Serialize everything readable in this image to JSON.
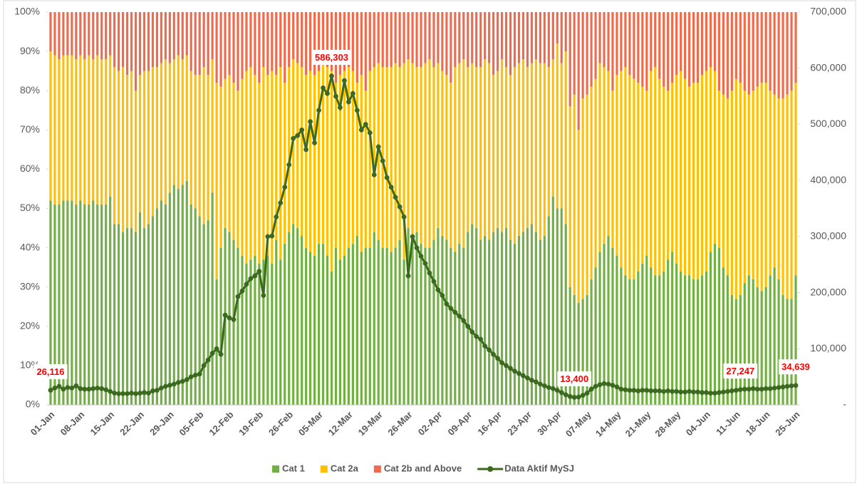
{
  "chart_data": {
    "type": "bar",
    "stacked": true,
    "categories": [
      "01-Jan",
      null,
      null,
      null,
      null,
      null,
      null,
      "08-Jan",
      null,
      null,
      null,
      null,
      null,
      null,
      "15-Jan",
      null,
      null,
      null,
      null,
      null,
      null,
      "22-Jan",
      null,
      null,
      null,
      null,
      null,
      null,
      "29-Jan",
      null,
      null,
      null,
      null,
      null,
      null,
      "05-Feb",
      null,
      null,
      null,
      null,
      null,
      null,
      "12-Feb",
      null,
      null,
      null,
      null,
      null,
      null,
      "19-Feb",
      null,
      null,
      null,
      null,
      null,
      null,
      "26-Feb",
      null,
      null,
      null,
      null,
      null,
      null,
      "05-Mar",
      null,
      null,
      null,
      null,
      null,
      null,
      "12-Mar",
      null,
      null,
      null,
      null,
      null,
      null,
      "19-Mar",
      null,
      null,
      null,
      null,
      null,
      null,
      "26-Mar",
      null,
      null,
      null,
      null,
      null,
      null,
      "02-Apr",
      null,
      null,
      null,
      null,
      null,
      null,
      "09-Apr",
      null,
      null,
      null,
      null,
      null,
      null,
      "16-Apr",
      null,
      null,
      null,
      null,
      null,
      null,
      "23-Apr",
      null,
      null,
      null,
      null,
      null,
      null,
      "30-Apr",
      null,
      null,
      null,
      null,
      null,
      null,
      "07-May",
      null,
      null,
      null,
      null,
      null,
      null,
      "14-May",
      null,
      null,
      null,
      null,
      null,
      null,
      "21-May",
      null,
      null,
      null,
      null,
      null,
      null,
      "28-May",
      null,
      null,
      null,
      null,
      null,
      null,
      "04-Jun",
      null,
      null,
      null,
      null,
      null,
      null,
      "11-Jun",
      null,
      null,
      null,
      null,
      null,
      null,
      "18-Jun",
      null,
      null,
      null,
      null,
      null,
      null,
      "25-Jun"
    ],
    "series": [
      {
        "name": "Cat 1",
        "color": "#72b043",
        "values": [
          52,
          51,
          51,
          52,
          52,
          52,
          51,
          52,
          51,
          51,
          52,
          51,
          51,
          51,
          53,
          46,
          46,
          44,
          45,
          45,
          44,
          49,
          45,
          46,
          48,
          50,
          52,
          51,
          54,
          56,
          55,
          56,
          57,
          51,
          50,
          48,
          46,
          47,
          54,
          32,
          40,
          45,
          44,
          42,
          40,
          38,
          36,
          37,
          38,
          36,
          37,
          38,
          36,
          42,
          37,
          41,
          44,
          46,
          45,
          43,
          40,
          39,
          38,
          41,
          41,
          38,
          34,
          40,
          37,
          38,
          40,
          41,
          43,
          39,
          40,
          40,
          44,
          42,
          40,
          40,
          39,
          40,
          42,
          37,
          45,
          43,
          44,
          41,
          40,
          40,
          42,
          45,
          43,
          42,
          40,
          39,
          41,
          40,
          44,
          46,
          45,
          42,
          43,
          42,
          44,
          45,
          44,
          45,
          42,
          41,
          43,
          44,
          45,
          46,
          44,
          42,
          43,
          48,
          53,
          50,
          50,
          46,
          30,
          28,
          26,
          27,
          28,
          32,
          35,
          39,
          41,
          43,
          40,
          38,
          35,
          33,
          32,
          32,
          34,
          36,
          38,
          35,
          33,
          33,
          34,
          37,
          39,
          36,
          34,
          33,
          33,
          32,
          32,
          33,
          34,
          39,
          41,
          40,
          35,
          33,
          28,
          27,
          28,
          31,
          33,
          32,
          30,
          29,
          30,
          33,
          35,
          32,
          28,
          27,
          27,
          33
        ]
      },
      {
        "name": "Cat 2a",
        "color": "#ffc000",
        "values": [
          38,
          38,
          37,
          37,
          37,
          37,
          37,
          37,
          37,
          38,
          36,
          38,
          37,
          37,
          36,
          40,
          39,
          42,
          39,
          40,
          36,
          35,
          40,
          39,
          38,
          36,
          35,
          37,
          33,
          32,
          34,
          32,
          32,
          34,
          34,
          36,
          40,
          37,
          34,
          50,
          41,
          38,
          40,
          40,
          40,
          45,
          49,
          49,
          46,
          46,
          49,
          46,
          49,
          42,
          49,
          41,
          42,
          42,
          42,
          43,
          44,
          46,
          46,
          44,
          47,
          48,
          51,
          42,
          47,
          47,
          46,
          44,
          39,
          45,
          40,
          45,
          42,
          45,
          46,
          46,
          47,
          47,
          44,
          50,
          43,
          44,
          42,
          45,
          47,
          48,
          44,
          42,
          42,
          42,
          42,
          47,
          46,
          48,
          42,
          41,
          41,
          44,
          45,
          45,
          40,
          40,
          44,
          41,
          42,
          45,
          44,
          44,
          41,
          41,
          44,
          45,
          44,
          38,
          35,
          42,
          37,
          44,
          46,
          51,
          44,
          51,
          51,
          49,
          48,
          48,
          45,
          42,
          40,
          46,
          50,
          53,
          52,
          51,
          48,
          45,
          42,
          50,
          53,
          50,
          47,
          43,
          43,
          48,
          51,
          50,
          48,
          50,
          50,
          51,
          51,
          47,
          44,
          40,
          44,
          45,
          52,
          56,
          54,
          49,
          46,
          48,
          51,
          53,
          52,
          47,
          44,
          46,
          50,
          52,
          53,
          49
        ]
      },
      {
        "name": "Cat 2b and Above",
        "color": "#ee6c4d",
        "values": [
          10,
          11,
          12,
          11,
          11,
          11,
          12,
          11,
          12,
          11,
          12,
          11,
          12,
          12,
          11,
          14,
          15,
          14,
          16,
          15,
          20,
          16,
          15,
          15,
          14,
          14,
          13,
          12,
          13,
          12,
          11,
          12,
          11,
          15,
          16,
          16,
          14,
          16,
          12,
          18,
          19,
          17,
          16,
          18,
          20,
          17,
          15,
          14,
          16,
          18,
          14,
          16,
          15,
          16,
          14,
          18,
          14,
          12,
          13,
          14,
          16,
          15,
          16,
          15,
          12,
          14,
          15,
          18,
          16,
          15,
          14,
          15,
          18,
          16,
          20,
          15,
          14,
          13,
          14,
          14,
          14,
          13,
          14,
          13,
          12,
          13,
          14,
          14,
          13,
          12,
          14,
          13,
          15,
          16,
          18,
          14,
          13,
          12,
          14,
          13,
          14,
          14,
          12,
          13,
          16,
          15,
          12,
          14,
          16,
          14,
          13,
          12,
          14,
          13,
          12,
          13,
          13,
          14,
          12,
          8,
          13,
          10,
          24,
          21,
          30,
          22,
          21,
          19,
          17,
          13,
          14,
          15,
          20,
          16,
          15,
          14,
          16,
          17,
          18,
          19,
          20,
          15,
          14,
          17,
          19,
          20,
          18,
          16,
          15,
          17,
          19,
          18,
          18,
          16,
          15,
          14,
          15,
          20,
          21,
          22,
          20,
          17,
          18,
          20,
          21,
          20,
          19,
          18,
          18,
          20,
          21,
          22,
          22,
          21,
          20,
          18
        ]
      },
      {
        "name": "Data Aktif MySJ",
        "color": "#3b6a1e",
        "type": "line",
        "axis": "y2",
        "values": [
          26116,
          30000,
          33000,
          28000,
          31000,
          30000,
          34000,
          29000,
          28000,
          28000,
          29000,
          30000,
          29000,
          27000,
          24000,
          21000,
          20000,
          20000,
          20000,
          21000,
          20000,
          21000,
          22000,
          21000,
          25000,
          26000,
          30000,
          33000,
          35000,
          37000,
          40000,
          42000,
          45000,
          50000,
          53000,
          55000,
          70000,
          80000,
          92000,
          100000,
          90000,
          160000,
          155000,
          152000,
          193000,
          203000,
          215000,
          225000,
          230000,
          238000,
          195000,
          300000,
          301000,
          335000,
          360000,
          388000,
          428000,
          475000,
          480000,
          490000,
          455000,
          505000,
          467000,
          525000,
          565000,
          555000,
          586303,
          550000,
          530000,
          578000,
          540000,
          555000,
          525000,
          490000,
          500000,
          485000,
          410000,
          460000,
          435000,
          405000,
          388000,
          370000,
          353000,
          335000,
          230000,
          300000,
          280000,
          265000,
          252000,
          235000,
          220000,
          205000,
          195000,
          180000,
          172000,
          165000,
          158000,
          150000,
          140000,
          130000,
          122000,
          117000,
          105000,
          98000,
          90000,
          83000,
          75000,
          70000,
          65000,
          60000,
          56000,
          52000,
          48000,
          44000,
          41000,
          37000,
          34000,
          31000,
          29000,
          26000,
          22000,
          18000,
          15000,
          13400,
          14000,
          17000,
          21000,
          28000,
          33000,
          36000,
          38000,
          37000,
          35000,
          32000,
          28000,
          27000,
          26000,
          26000,
          25000,
          26000,
          26000,
          25000,
          25000,
          25000,
          24000,
          25000,
          24000,
          24000,
          23000,
          23000,
          24000,
          23000,
          23000,
          22000,
          22000,
          21000,
          21000,
          22000,
          23000,
          24000,
          25000,
          26000,
          27247,
          28000,
          28000,
          29000,
          28000,
          28000,
          29000,
          29000,
          30000,
          31000,
          32000,
          33000,
          34000,
          34639
        ],
        "value_labels": [
          "26,116",
          null,
          null,
          null,
          null,
          null,
          null,
          null,
          null,
          null,
          null,
          null,
          null,
          null,
          null,
          null,
          null,
          null,
          null,
          null,
          null,
          null,
          null,
          null,
          null,
          null,
          null,
          null,
          null,
          null,
          null,
          null,
          null,
          null,
          null,
          null,
          null,
          null,
          null,
          null,
          null,
          null,
          null,
          null,
          null,
          null,
          null,
          null,
          null,
          null,
          null,
          null,
          null,
          null,
          null,
          null,
          null,
          null,
          null,
          null,
          null,
          null,
          null,
          null,
          null,
          null,
          "586,303",
          null,
          null,
          null,
          null,
          null,
          null,
          null,
          null,
          null,
          null,
          null,
          null,
          null,
          null,
          null,
          null,
          null,
          null,
          null,
          null,
          null,
          null,
          null,
          null,
          null,
          null,
          null,
          null,
          null,
          null,
          null,
          null,
          null,
          null,
          null,
          null,
          null,
          null,
          null,
          null,
          null,
          null,
          null,
          null,
          null,
          null,
          null,
          null,
          null,
          null,
          null,
          null,
          null,
          null,
          null,
          null,
          "13,400",
          null,
          null,
          null,
          null,
          null,
          null,
          null,
          null,
          null,
          null,
          null,
          null,
          null,
          null,
          null,
          null,
          null,
          null,
          null,
          null,
          null,
          null,
          null,
          null,
          null,
          null,
          null,
          null,
          null,
          null,
          null,
          null,
          null,
          null,
          null,
          null,
          null,
          null,
          "27,247",
          null,
          null,
          null,
          null,
          null,
          null,
          null,
          null,
          null,
          null,
          null,
          null,
          "34,639"
        ]
      }
    ],
    "ylim": [
      0,
      100
    ],
    "yticks": [
      {
        "value": 0,
        "label": "0%"
      },
      {
        "value": 10,
        "label": "10%"
      },
      {
        "value": 20,
        "label": "20%"
      },
      {
        "value": 30,
        "label": "30%"
      },
      {
        "value": 40,
        "label": "40%"
      },
      {
        "value": 50,
        "label": "50%"
      },
      {
        "value": 60,
        "label": "60%"
      },
      {
        "value": 70,
        "label": "70%"
      },
      {
        "value": 80,
        "label": "80%"
      },
      {
        "value": 90,
        "label": "90%"
      },
      {
        "value": 100,
        "label": "100%"
      }
    ],
    "y2lim": [
      0,
      700000
    ],
    "y2ticks": [
      {
        "value": 0,
        "label": "-"
      },
      {
        "value": 100000,
        "label": "100,000"
      },
      {
        "value": 200000,
        "label": "200,000"
      },
      {
        "value": 300000,
        "label": "300,000"
      },
      {
        "value": 400000,
        "label": "400,000"
      },
      {
        "value": 500000,
        "label": "500,000"
      },
      {
        "value": 600000,
        "label": "600,000"
      },
      {
        "value": 700000,
        "label": "700,000"
      }
    ],
    "grid": false,
    "legend": "bottom"
  }
}
